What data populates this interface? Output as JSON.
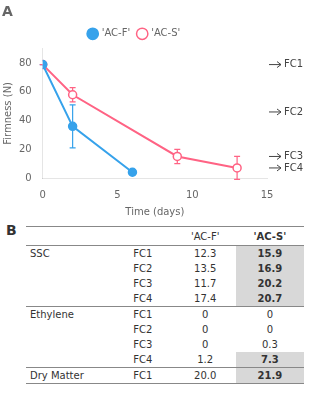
{
  "chart_data": [
    {
      "type": "line",
      "title": "A",
      "x_label": "Time (days)",
      "y_label": "Firmness (N)",
      "series": [
        {
          "name": "'AC-F'",
          "marker": "filled circle",
          "x": [
            0,
            2,
            6
          ],
          "values": [
            79,
            36,
            4
          ],
          "errors": [
            0,
            15,
            0
          ]
        },
        {
          "name": "'AC-S'",
          "marker": "open circle",
          "x": [
            0,
            2,
            9,
            13
          ],
          "values": [
            79,
            58,
            15,
            7
          ],
          "errors": [
            0,
            5,
            5,
            8
          ]
        }
      ],
      "xlim": [
        0,
        15
      ],
      "ylim": [
        0,
        90
      ],
      "xticks": [
        0,
        5,
        10,
        15
      ],
      "yticks": [
        0,
        20,
        40,
        60,
        80
      ],
      "grid": false,
      "legend": "top",
      "annotations": [
        {
          "text": "FC1",
          "y": 79
        },
        {
          "text": "FC2",
          "y": 46
        },
        {
          "text": "FC3",
          "y": 15
        },
        {
          "text": "FC4",
          "y": 7
        }
      ]
    },
    {
      "type": "table",
      "title": "B",
      "row_groups": [
        "SSC",
        null,
        null,
        null,
        "Ethylene",
        null,
        null,
        null,
        "Dry Matter"
      ],
      "row_labels": [
        "FC1",
        "FC2",
        "FC3",
        "FC4",
        "FC1",
        "FC2",
        "FC3",
        "FC4",
        "FC1"
      ],
      "series": [
        {
          "name": "'AC-F'",
          "values": [
            "12.3",
            "13.5",
            "11.7",
            "17.4",
            "0",
            "0",
            "0",
            "1.2",
            "20.0"
          ]
        },
        {
          "name": "'AC-S'",
          "values": [
            "15.9",
            "16.9",
            "20.2",
            "20.7",
            "0",
            "0",
            "0.3",
            "7.3",
            "21.9"
          ],
          "highlighted": [
            true,
            true,
            true,
            true,
            false,
            false,
            false,
            true,
            true
          ],
          "color": "#d8d8d8"
        }
      ]
    }
  ]
}
